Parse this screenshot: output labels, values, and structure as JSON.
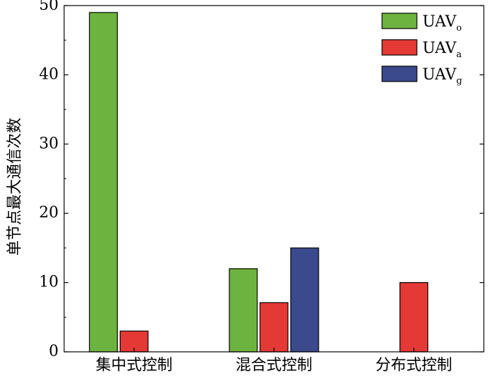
{
  "chart_data": {
    "type": "bar",
    "categories": [
      "集中式控制",
      "混合式控制",
      "分布式控制"
    ],
    "series": [
      {
        "name": "UAV",
        "subscript": "o",
        "color": "#6db33f",
        "values": [
          49,
          12,
          null
        ]
      },
      {
        "name": "UAV",
        "subscript": "a",
        "color": "#e53935",
        "values": [
          3,
          7.1,
          10
        ]
      },
      {
        "name": "UAV",
        "subscript": "g",
        "color": "#3a4a8c",
        "values": [
          null,
          15,
          null
        ]
      }
    ],
    "ylabel": "单节点最大通信次数",
    "ylim": [
      0,
      50
    ],
    "yticks": [
      0,
      10,
      20,
      30,
      40,
      50
    ],
    "grid": false,
    "legend_position": "top-right"
  }
}
